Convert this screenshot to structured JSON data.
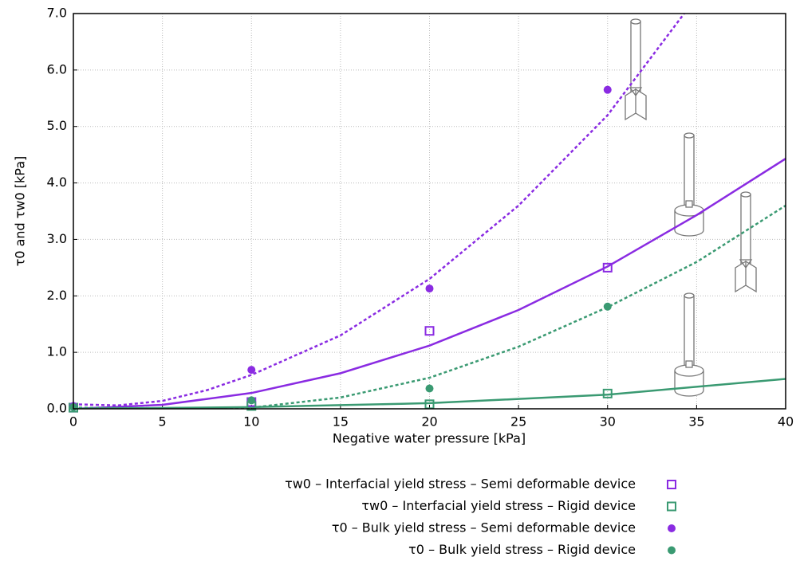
{
  "chart_data": {
    "type": "scatter",
    "x_label": "Negative water pressure [kPa]",
    "y_label": "τ0 and τw0 [kPa]",
    "xlim": [
      0,
      40
    ],
    "xticks": [
      0,
      5,
      10,
      15,
      20,
      25,
      30,
      35,
      40
    ],
    "ylim": [
      0,
      7
    ],
    "yticks": [
      {
        "value": 0,
        "label": "0.0"
      },
      {
        "value": 1,
        "label": "1.0"
      },
      {
        "value": 2,
        "label": "2.0"
      },
      {
        "value": 3,
        "label": "3.0"
      },
      {
        "value": 4,
        "label": "4.0"
      },
      {
        "value": 5,
        "label": "5.0"
      },
      {
        "value": 6,
        "label": "6.0"
      },
      {
        "value": 7,
        "label": "7.0"
      }
    ],
    "grid": true,
    "series": [
      {
        "name": "τw0 – Interfacial yield stress – Semi deformable device",
        "color": "#8a2be2",
        "marker": "open-square",
        "x": [
          0,
          10,
          20,
          30
        ],
        "values": [
          0.02,
          0.12,
          1.38,
          2.5
        ]
      },
      {
        "name": "τw0 – Interfacial yield stress – Rigid device",
        "color": "#3a9a72",
        "marker": "open-square",
        "x": [
          0,
          10,
          20,
          30
        ],
        "values": [
          0.02,
          0.05,
          0.08,
          0.27
        ]
      },
      {
        "name": "τ0 – Bulk yield stress – Semi deformable device",
        "color": "#8a2be2",
        "marker": "dot",
        "x": [
          0,
          10,
          20,
          30
        ],
        "values": [
          0.05,
          0.69,
          2.13,
          5.65
        ]
      },
      {
        "name": "τ0 – Bulk yield stress – Rigid device",
        "color": "#3a9a72",
        "marker": "dot",
        "x": [
          0,
          10,
          20,
          30
        ],
        "values": [
          0.03,
          0.15,
          0.36,
          1.81
        ]
      }
    ],
    "lines": [
      {
        "color": "#8a2be2",
        "dashed": false,
        "x": [
          0,
          5,
          10,
          15,
          20,
          25,
          30,
          35,
          40
        ],
        "values": [
          0,
          0.07,
          0.28,
          0.63,
          1.12,
          1.75,
          2.52,
          3.43,
          4.43
        ]
      },
      {
        "color": "#8a2be2",
        "dashed": true,
        "x": [
          0,
          2.5,
          5,
          7.5,
          10,
          15,
          20,
          25,
          30,
          34.3
        ],
        "values": [
          0.08,
          0.06,
          0.14,
          0.33,
          0.6,
          1.3,
          2.3,
          3.6,
          5.2,
          7.0
        ]
      },
      {
        "color": "#3a9a72",
        "dashed": false,
        "x": [
          0,
          10,
          20,
          30,
          40
        ],
        "values": [
          0,
          0.03,
          0.1,
          0.25,
          0.53
        ]
      },
      {
        "color": "#3a9a72",
        "dashed": true,
        "x": [
          0,
          5,
          10,
          15,
          20,
          25,
          30,
          35,
          40
        ],
        "values": [
          0.02,
          0.01,
          0.02,
          0.2,
          0.55,
          1.1,
          1.8,
          2.6,
          3.6
        ]
      }
    ]
  }
}
